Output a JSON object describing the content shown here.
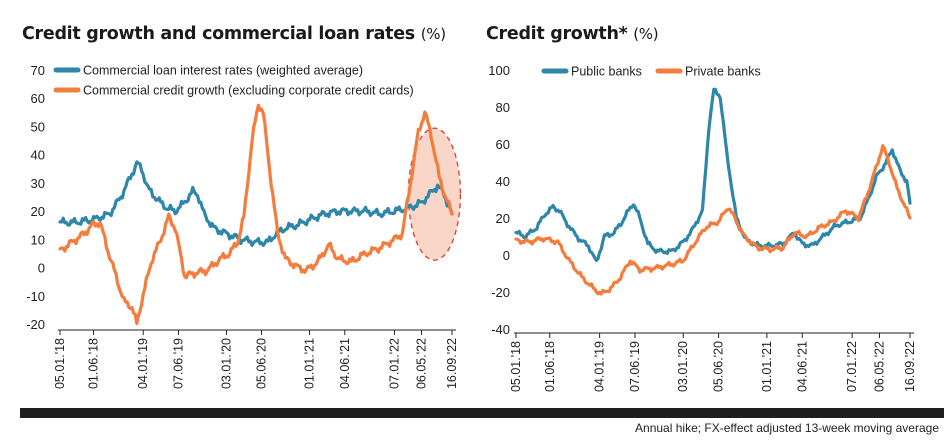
{
  "chart_data": [
    {
      "type": "line",
      "title": "Credit growth and commercial loan rates",
      "unit": "(%)",
      "xlabel": "",
      "ylabel": "",
      "ylim": [
        -20,
        70
      ],
      "y_ticks": [
        -20,
        -10,
        0,
        10,
        20,
        30,
        40,
        50,
        60,
        70
      ],
      "x_ticks": [
        "05.01.'18",
        "01.06.'18",
        "04.01.'19",
        "07.06.'19",
        "03.01.'20",
        "05.06.'20",
        "01.01.'21",
        "04.06.'21",
        "07.01.'22",
        "06.05.'22",
        "16.09.'22"
      ],
      "x_tick_dates": [
        "2018-01-05",
        "2018-06-01",
        "2019-01-04",
        "2019-06-07",
        "2020-01-03",
        "2020-06-05",
        "2021-01-01",
        "2021-06-04",
        "2022-01-07",
        "2022-05-06",
        "2022-09-16"
      ],
      "xlim": [
        "2018-01-05",
        "2022-09-16"
      ],
      "grid": false,
      "legend": "top-left",
      "highlight_color": "#f9cfc0",
      "highlight_border": "#e03a2e",
      "series": [
        {
          "name": "Commercial loan interest rates (weighted average)",
          "color": "#2e86a8",
          "points": [
            [
              "2018-01-05",
              16
            ],
            [
              "2018-03-09",
              16
            ],
            [
              "2018-06-01",
              17
            ],
            [
              "2018-08-10",
              19
            ],
            [
              "2018-09-28",
              25
            ],
            [
              "2018-11-09",
              32
            ],
            [
              "2018-12-07",
              37
            ],
            [
              "2018-12-28",
              35
            ],
            [
              "2019-01-25",
              28
            ],
            [
              "2019-03-08",
              24
            ],
            [
              "2019-04-19",
              21
            ],
            [
              "2019-05-24",
              20
            ],
            [
              "2019-06-21",
              22
            ],
            [
              "2019-07-12",
              24
            ],
            [
              "2019-08-09",
              27
            ],
            [
              "2019-08-30",
              26
            ],
            [
              "2019-09-27",
              19
            ],
            [
              "2019-11-08",
              14
            ],
            [
              "2020-01-03",
              12
            ],
            [
              "2020-03-06",
              10
            ],
            [
              "2020-05-08",
              9
            ],
            [
              "2020-07-03",
              9
            ],
            [
              "2020-08-07",
              12
            ],
            [
              "2020-09-18",
              14
            ],
            [
              "2020-11-06",
              15
            ],
            [
              "2021-01-01",
              17
            ],
            [
              "2021-03-05",
              19
            ],
            [
              "2021-05-07",
              20
            ],
            [
              "2021-07-02",
              20
            ],
            [
              "2021-09-03",
              20
            ],
            [
              "2021-11-05",
              19
            ],
            [
              "2022-01-07",
              20
            ],
            [
              "2022-03-04",
              21
            ],
            [
              "2022-04-08",
              22
            ],
            [
              "2022-05-06",
              23
            ],
            [
              "2022-06-10",
              26
            ],
            [
              "2022-07-15",
              29
            ],
            [
              "2022-08-12",
              26
            ],
            [
              "2022-09-16",
              19
            ]
          ]
        },
        {
          "name": "Commercial credit growth (excluding corporate credit cards)",
          "color": "#f47c3c",
          "points": [
            [
              "2018-01-05",
              6
            ],
            [
              "2018-02-09",
              8
            ],
            [
              "2018-03-16",
              10
            ],
            [
              "2018-04-20",
              12
            ],
            [
              "2018-05-25",
              15
            ],
            [
              "2018-06-29",
              16
            ],
            [
              "2018-08-03",
              6
            ],
            [
              "2018-09-07",
              -3
            ],
            [
              "2018-10-12",
              -12
            ],
            [
              "2018-11-16",
              -14
            ],
            [
              "2018-12-07",
              -20
            ],
            [
              "2018-12-28",
              -12
            ],
            [
              "2019-02-08",
              2
            ],
            [
              "2019-03-22",
              10
            ],
            [
              "2019-04-26",
              18
            ],
            [
              "2019-05-24",
              14
            ],
            [
              "2019-07-05",
              -3
            ],
            [
              "2019-08-16",
              -2
            ],
            [
              "2019-10-11",
              -1
            ],
            [
              "2019-12-06",
              3
            ],
            [
              "2020-01-17",
              5
            ],
            [
              "2020-02-21",
              9
            ],
            [
              "2020-03-20",
              18
            ],
            [
              "2020-04-24",
              45
            ],
            [
              "2020-05-22",
              58
            ],
            [
              "2020-06-12",
              55
            ],
            [
              "2020-07-10",
              35
            ],
            [
              "2020-08-14",
              12
            ],
            [
              "2020-09-18",
              3
            ],
            [
              "2020-11-13",
              0
            ],
            [
              "2020-12-18",
              -1
            ],
            [
              "2021-02-05",
              2
            ],
            [
              "2021-03-26",
              8
            ],
            [
              "2021-05-07",
              3
            ],
            [
              "2021-07-02",
              2
            ],
            [
              "2021-09-03",
              5
            ],
            [
              "2021-11-05",
              7
            ],
            [
              "2022-01-07",
              10
            ],
            [
              "2022-02-11",
              12
            ],
            [
              "2022-03-18",
              30
            ],
            [
              "2022-04-22",
              48
            ],
            [
              "2022-05-20",
              55
            ],
            [
              "2022-06-17",
              47
            ],
            [
              "2022-07-22",
              32
            ],
            [
              "2022-08-19",
              25
            ],
            [
              "2022-09-16",
              19
            ]
          ]
        }
      ]
    },
    {
      "type": "line",
      "title": "Credit growth*",
      "unit": "(%)",
      "xlabel": "",
      "ylabel": "",
      "ylim": [
        -40,
        100
      ],
      "y_ticks": [
        -40,
        -20,
        0,
        20,
        40,
        60,
        80,
        100
      ],
      "x_ticks": [
        "05.01.'18",
        "01.06.'18",
        "04.01.'19",
        "07.06.'19",
        "03.01.'20",
        "05.06.'20",
        "01.01.'21",
        "04.06.'21",
        "07.01.'22",
        "06.05.'22",
        "16.09.'22"
      ],
      "x_tick_dates": [
        "2018-01-05",
        "2018-06-01",
        "2019-01-04",
        "2019-06-07",
        "2020-01-03",
        "2020-06-05",
        "2021-01-01",
        "2021-06-04",
        "2022-01-07",
        "2022-05-06",
        "2022-09-16"
      ],
      "xlim": [
        "2018-01-05",
        "2022-09-16"
      ],
      "grid": false,
      "legend": "top",
      "series": [
        {
          "name": "Public banks",
          "color": "#2e86a8",
          "points": [
            [
              "2018-01-05",
              12
            ],
            [
              "2018-02-16",
              10
            ],
            [
              "2018-04-06",
              15
            ],
            [
              "2018-05-11",
              22
            ],
            [
              "2018-06-15",
              26
            ],
            [
              "2018-07-13",
              24
            ],
            [
              "2018-08-10",
              18
            ],
            [
              "2018-09-07",
              13
            ],
            [
              "2018-10-12",
              8
            ],
            [
              "2018-11-16",
              5
            ],
            [
              "2018-12-21",
              -4
            ],
            [
              "2019-01-25",
              10
            ],
            [
              "2019-03-08",
              12
            ],
            [
              "2019-04-12",
              18
            ],
            [
              "2019-05-10",
              24
            ],
            [
              "2019-05-31",
              28
            ],
            [
              "2019-06-28",
              20
            ],
            [
              "2019-08-02",
              6
            ],
            [
              "2019-09-13",
              2
            ],
            [
              "2019-11-15",
              2
            ],
            [
              "2020-01-03",
              7
            ],
            [
              "2020-02-14",
              14
            ],
            [
              "2020-03-27",
              24
            ],
            [
              "2020-04-24",
              70
            ],
            [
              "2020-05-15",
              89
            ],
            [
              "2020-06-12",
              86
            ],
            [
              "2020-07-10",
              55
            ],
            [
              "2020-08-21",
              20
            ],
            [
              "2020-10-02",
              8
            ],
            [
              "2020-11-27",
              5
            ],
            [
              "2021-01-22",
              5
            ],
            [
              "2021-03-12",
              6
            ],
            [
              "2021-04-30",
              12
            ],
            [
              "2021-06-04",
              6
            ],
            [
              "2021-07-16",
              5
            ],
            [
              "2021-09-03",
              10
            ],
            [
              "2021-10-29",
              16
            ],
            [
              "2021-12-24",
              18
            ],
            [
              "2022-02-11",
              20
            ],
            [
              "2022-03-18",
              30
            ],
            [
              "2022-04-22",
              42
            ],
            [
              "2022-06-03",
              50
            ],
            [
              "2022-07-01",
              57
            ],
            [
              "2022-08-05",
              45
            ],
            [
              "2022-09-02",
              40
            ],
            [
              "2022-09-16",
              28
            ]
          ]
        },
        {
          "name": "Private banks",
          "color": "#f47c3c",
          "points": [
            [
              "2018-01-05",
              8
            ],
            [
              "2018-03-02",
              7
            ],
            [
              "2018-05-04",
              9
            ],
            [
              "2018-07-06",
              7
            ],
            [
              "2018-08-24",
              -3
            ],
            [
              "2018-10-19",
              -12
            ],
            [
              "2018-12-07",
              -18
            ],
            [
              "2019-01-11",
              -21
            ],
            [
              "2019-02-22",
              -18
            ],
            [
              "2019-04-05",
              -12
            ],
            [
              "2019-05-17",
              -3
            ],
            [
              "2019-06-28",
              -8
            ],
            [
              "2019-09-06",
              -7
            ],
            [
              "2019-11-15",
              -5
            ],
            [
              "2020-01-03",
              -3
            ],
            [
              "2020-02-14",
              5
            ],
            [
              "2020-04-10",
              15
            ],
            [
              "2020-06-05",
              18
            ],
            [
              "2020-07-17",
              26
            ],
            [
              "2020-08-14",
              20
            ],
            [
              "2020-09-25",
              10
            ],
            [
              "2020-11-20",
              4
            ],
            [
              "2021-01-15",
              3
            ],
            [
              "2021-03-12",
              4
            ],
            [
              "2021-04-30",
              12
            ],
            [
              "2021-06-25",
              10
            ],
            [
              "2021-08-20",
              15
            ],
            [
              "2021-10-15",
              18
            ],
            [
              "2021-12-10",
              24
            ],
            [
              "2022-02-04",
              20
            ],
            [
              "2022-03-18",
              34
            ],
            [
              "2022-04-29",
              50
            ],
            [
              "2022-05-20",
              59
            ],
            [
              "2022-06-17",
              50
            ],
            [
              "2022-07-22",
              36
            ],
            [
              "2022-08-19",
              28
            ],
            [
              "2022-09-16",
              20
            ]
          ]
        }
      ]
    }
  ],
  "footnote": "Annual hike; FX-effect adjusted 13-week moving average"
}
